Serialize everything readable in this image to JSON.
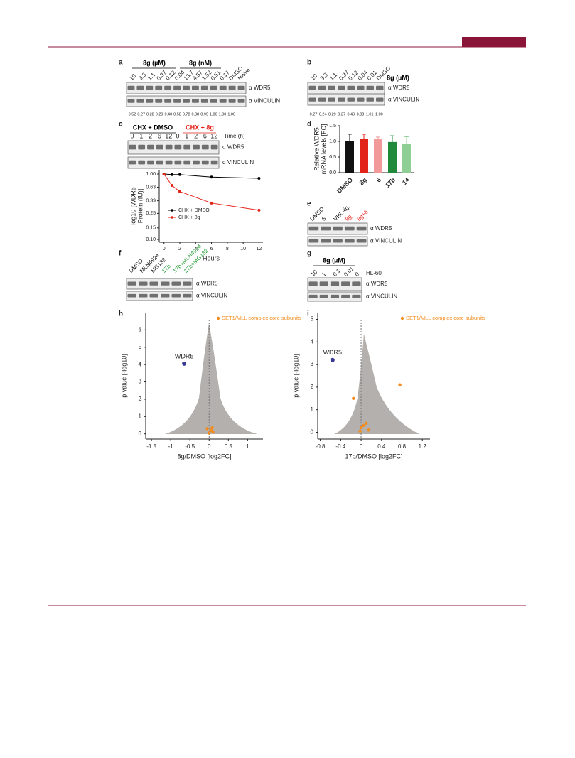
{
  "blots": {
    "a": {
      "label": "a",
      "headers": [
        "8g (µM)",
        "8g (nM)"
      ],
      "lanes": [
        "10",
        "3.3",
        "1.1",
        "0.37",
        "0.12",
        "0.04",
        "13.7",
        "4.57",
        "1.52",
        "0.51",
        "0.17",
        "DMSO",
        "Naive"
      ],
      "blots": [
        "α WDR5",
        "α VINCULIN"
      ],
      "quant": [
        "0.52",
        "0.27",
        "0.28",
        "0.29",
        "0.40",
        "0.58",
        "0.78",
        "0.88",
        "0.99",
        "1.06",
        "1.00",
        "1.00"
      ]
    },
    "b": {
      "label": "b",
      "headers": [
        "8g (µM)"
      ],
      "lanes": [
        "10",
        "3.3",
        "1.1",
        "0.37",
        "0.12",
        "0.04",
        "0.01",
        "DMSO"
      ],
      "blots": [
        "α WDR5",
        "α VINCULIN"
      ],
      "quant": [
        "0.27",
        "0.24",
        "0.29",
        "0.27",
        "0.49",
        "0.88",
        "1.01",
        "1.00"
      ]
    },
    "c": {
      "label": "c",
      "headers": [
        "CHX + DMSO",
        "CHX + 8g"
      ],
      "header_colors": [
        "#000000",
        "#e2231a"
      ],
      "lanes": [
        "0",
        "1",
        "2",
        "6",
        "12",
        "0",
        "1",
        "2",
        "6",
        "12"
      ],
      "lane_title": "Time (h)",
      "blots": [
        "α WDR5",
        "α VINCULIN"
      ]
    },
    "d": {
      "label": "d"
    },
    "e": {
      "label": "e",
      "lanes": [
        "DMSO",
        "6",
        "VHL-lig.",
        "8g",
        "8g+6"
      ],
      "lane_colors": [
        "#000000",
        "#000000",
        "#000000",
        "#e2231a",
        "#e2231a"
      ],
      "blots": [
        "α WDR5",
        "α VINCULIN"
      ]
    },
    "f": {
      "label": "f",
      "lanes": [
        "DMSO",
        "MLN4924",
        "MG132",
        "17b",
        "17b+MLN4924",
        "17b+MG132"
      ],
      "lane_colors": [
        "#000000",
        "#000000",
        "#000000",
        "#2a9d3a",
        "#2a9d3a",
        "#2a9d3a"
      ],
      "blots": [
        "α WDR5",
        "α VINCULIN"
      ]
    },
    "g": {
      "label": "g",
      "headers": [
        "8g (µM)"
      ],
      "lanes": [
        "10",
        "1",
        "0.1",
        "0.01",
        "0"
      ],
      "lane_title": "HL-60",
      "blots": [
        "α WDR5",
        "α VINCULIN"
      ]
    }
  },
  "chart_data": [
    {
      "type": "line",
      "x": [
        0,
        1,
        2,
        6,
        12
      ],
      "xlim": [
        -0.6,
        12.5
      ],
      "xticks": [
        0,
        2,
        4,
        6,
        8,
        10,
        12
      ],
      "xlabel": "Hours",
      "ylabel": [
        "log10 [WDR5",
        "Protein (fU)]"
      ],
      "log_y": true,
      "ylim": [
        0.1,
        1
      ],
      "yticks": [
        {
          "value": 1,
          "label": "1.00"
        },
        0.63,
        0.39,
        0.25,
        0.15,
        {
          "value": 0.1,
          "label": "0.10"
        }
      ],
      "series": [
        {
          "name": "CHX + DMSO",
          "color": "#000000",
          "values": [
            1.0,
            0.98,
            0.98,
            0.9,
            0.86
          ]
        },
        {
          "name": "CHX + 8g",
          "color": "#e2231a",
          "values": [
            1.0,
            0.67,
            0.54,
            0.36,
            0.28
          ]
        }
      ]
    },
    {
      "type": "bar",
      "ylabel": [
        "Relative WDR5",
        "mRNA levels [FC]"
      ],
      "categories": [
        "DMSO",
        "8g",
        "6",
        "17b",
        "14"
      ],
      "values": [
        1.0,
        1.08,
        1.07,
        0.98,
        0.93
      ],
      "errors": [
        0.23,
        0.15,
        0.07,
        0.2,
        0.22
      ],
      "colors": [
        "#111111",
        "#e2231a",
        "#f29a9a",
        "#1f8a3a",
        "#8fce94"
      ],
      "ylim": [
        0,
        1.5
      ],
      "yticks": [
        {
          "value": 0,
          "label": "0.0"
        },
        {
          "value": 0.5,
          "label": "0.5"
        },
        {
          "value": 1,
          "label": "1.0"
        },
        {
          "value": 1.5,
          "label": "1.5"
        }
      ]
    },
    {
      "type": "scatter",
      "panel": "h",
      "xlabel": "8g/DMSO [log2FC]",
      "ylabel": "p value [-log10]",
      "xlim": [
        -1.65,
        1.4
      ],
      "ylim": [
        -0.3,
        7
      ],
      "xticks": [
        -1.5,
        -1,
        -0.5,
        0,
        0.5,
        1
      ],
      "yticks": [
        0,
        1,
        2,
        3,
        4,
        5,
        6
      ],
      "series": [
        {
          "name": "WDR5",
          "color": "#3a3a96",
          "x": [
            -0.65
          ],
          "y": [
            4.05
          ]
        },
        {
          "name": "SET1/MLL complex core subunits",
          "color": "#f28c1e",
          "x": [
            -0.05,
            0.0,
            0.05,
            0.08,
            0.1
          ],
          "y": [
            0.3,
            0.05,
            0.2,
            0.35,
            0.1
          ]
        }
      ]
    },
    {
      "type": "scatter",
      "panel": "i",
      "xlabel": "17b/DMSO [log2FC]",
      "ylabel": "p value [-log10]",
      "xlim": [
        -0.85,
        1.35
      ],
      "ylim": [
        -0.3,
        5.3
      ],
      "xticks": [
        -0.8,
        -0.4,
        0,
        0.4,
        0.8,
        1.2
      ],
      "yticks": [
        0,
        1,
        2,
        3,
        4,
        5
      ],
      "series": [
        {
          "name": "WDR5",
          "color": "#3a3a96",
          "x": [
            -0.56
          ],
          "y": [
            3.2
          ]
        },
        {
          "name": "SET1/MLL complex core subunits",
          "color": "#f28c1e",
          "x": [
            0.76,
            -0.15,
            0.05,
            0.1,
            0.15,
            0.0,
            -0.02
          ],
          "y": [
            2.1,
            1.5,
            0.3,
            0.4,
            0.1,
            0.2,
            0.05
          ]
        }
      ]
    }
  ]
}
